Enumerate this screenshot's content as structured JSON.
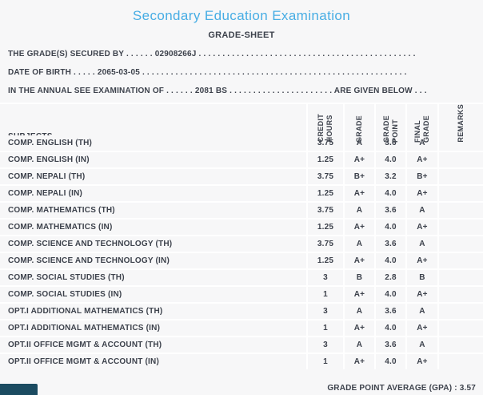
{
  "page": {
    "title": "Secondary Education Examination",
    "subtitle": "GRADE-SHEET",
    "info_lines": [
      "THE GRADE(S) SECURED BY . . . . . . 02908266J . . . . . . . . . . . . . . . . . . . . . . . . . . . . . . . . . . . . . . . . . . . . . .",
      "DATE OF BIRTH . . . . . 2065-03-05 . . . . . . . . . . . . . . . . . . . . . . . . . . . . . . . . . . . . . . . . . . . . . . . . . . . . . . . .",
      "IN THE ANNUAL SEE EXAMINATION OF . . . . . . 2081 BS . . . . . . . . . . . . . . . . . . . . . . ARE GIVEN BELOW . . ."
    ],
    "gpa_label": "GRADE POINT AVERAGE (GPA) : 3.57"
  },
  "table": {
    "subjects_header": "SUBJECTS",
    "columns": [
      "CREDIT\nHOURS",
      "GRADE",
      "GRADE\nPOINT",
      "FINAL\nGRADE",
      "REMARKS"
    ],
    "rows": [
      {
        "subject": "COMP. ENGLISH (TH)",
        "credit_hours": "3.75",
        "grade": "A",
        "grade_point": "3.6",
        "final_grade": "A",
        "remarks": ""
      },
      {
        "subject": "COMP. ENGLISH (IN)",
        "credit_hours": "1.25",
        "grade": "A+",
        "grade_point": "4.0",
        "final_grade": "A+",
        "remarks": ""
      },
      {
        "subject": "COMP. NEPALI (TH)",
        "credit_hours": "3.75",
        "grade": "B+",
        "grade_point": "3.2",
        "final_grade": "B+",
        "remarks": ""
      },
      {
        "subject": "COMP. NEPALI (IN)",
        "credit_hours": "1.25",
        "grade": "A+",
        "grade_point": "4.0",
        "final_grade": "A+",
        "remarks": ""
      },
      {
        "subject": "COMP. MATHEMATICS (TH)",
        "credit_hours": "3.75",
        "grade": "A",
        "grade_point": "3.6",
        "final_grade": "A",
        "remarks": ""
      },
      {
        "subject": "COMP. MATHEMATICS (IN)",
        "credit_hours": "1.25",
        "grade": "A+",
        "grade_point": "4.0",
        "final_grade": "A+",
        "remarks": ""
      },
      {
        "subject": "COMP. SCIENCE AND TECHNOLOGY (TH)",
        "credit_hours": "3.75",
        "grade": "A",
        "grade_point": "3.6",
        "final_grade": "A",
        "remarks": ""
      },
      {
        "subject": "COMP. SCIENCE AND TECHNOLOGY (IN)",
        "credit_hours": "1.25",
        "grade": "A+",
        "grade_point": "4.0",
        "final_grade": "A+",
        "remarks": ""
      },
      {
        "subject": "COMP. SOCIAL STUDIES (TH)",
        "credit_hours": "3",
        "grade": "B",
        "grade_point": "2.8",
        "final_grade": "B",
        "remarks": ""
      },
      {
        "subject": "COMP. SOCIAL STUDIES (IN)",
        "credit_hours": "1",
        "grade": "A+",
        "grade_point": "4.0",
        "final_grade": "A+",
        "remarks": ""
      },
      {
        "subject": "OPT.I ADDITIONAL MATHEMATICS (TH)",
        "credit_hours": "3",
        "grade": "A",
        "grade_point": "3.6",
        "final_grade": "A",
        "remarks": ""
      },
      {
        "subject": "OPT.I ADDITIONAL MATHEMATICS (IN)",
        "credit_hours": "1",
        "grade": "A+",
        "grade_point": "4.0",
        "final_grade": "A+",
        "remarks": ""
      },
      {
        "subject": "OPT.II OFFICE MGMT & ACCOUNT (TH)",
        "credit_hours": "3",
        "grade": "A",
        "grade_point": "3.6",
        "final_grade": "A",
        "remarks": ""
      },
      {
        "subject": "OPT.II OFFICE MGMT & ACCOUNT (IN)",
        "credit_hours": "1",
        "grade": "A+",
        "grade_point": "4.0",
        "final_grade": "A+",
        "remarks": ""
      }
    ]
  },
  "colors": {
    "accent_blue": "#47ade4",
    "text": "#3d424c",
    "background": "#f7f7f8",
    "separator": "#ffffff",
    "status_bar": "#1b4b61"
  }
}
